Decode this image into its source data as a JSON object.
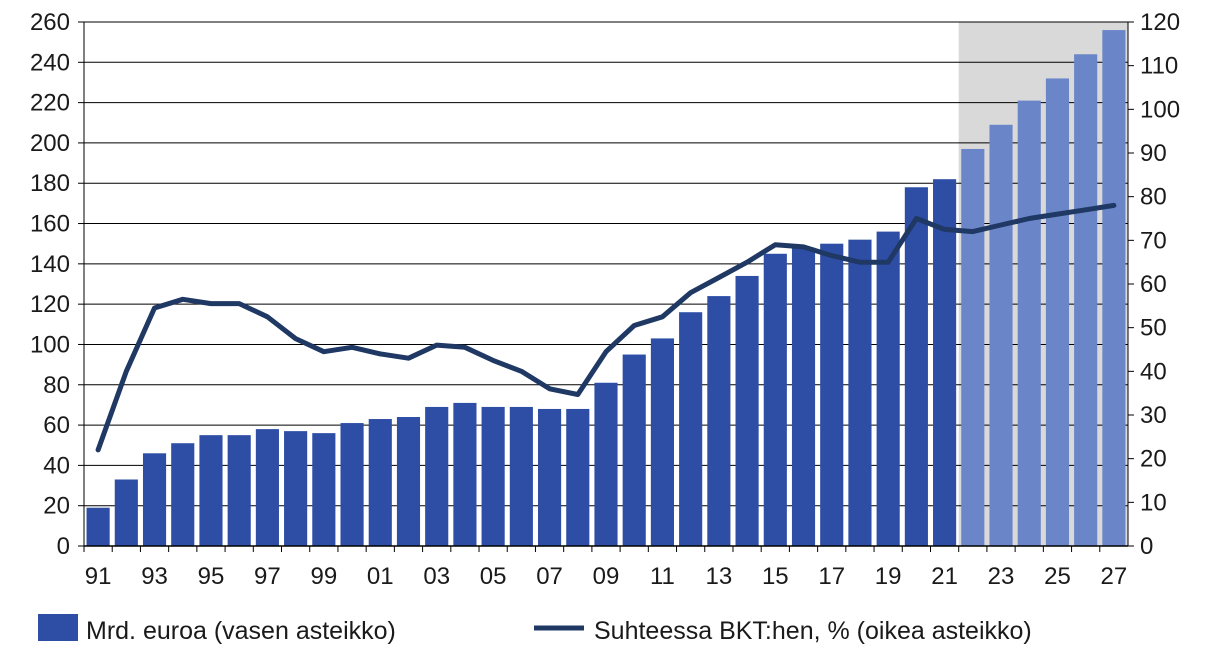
{
  "chart_data": {
    "type": "bar+line",
    "categories": [
      "91",
      "92",
      "93",
      "94",
      "95",
      "96",
      "97",
      "98",
      "99",
      "00",
      "01",
      "02",
      "03",
      "04",
      "05",
      "06",
      "07",
      "08",
      "09",
      "10",
      "11",
      "12",
      "13",
      "14",
      "15",
      "16",
      "17",
      "18",
      "19",
      "20",
      "21",
      "22",
      "23",
      "24",
      "25",
      "26",
      "27"
    ],
    "x_tick_labels": [
      "91",
      "93",
      "95",
      "97",
      "99",
      "01",
      "03",
      "05",
      "07",
      "09",
      "11",
      "13",
      "15",
      "17",
      "19",
      "21",
      "23",
      "25",
      "27"
    ],
    "forecast_from": "22",
    "series": [
      {
        "name": "Mrd. euroa (vasen asteikko)",
        "type": "bar",
        "axis": "left",
        "color": "#2e4ea6",
        "forecast_color": "#6b86c8",
        "values": [
          19,
          33,
          46,
          51,
          55,
          55,
          58,
          57,
          56,
          61,
          63,
          64,
          69,
          71,
          69,
          69,
          68,
          68,
          81,
          95,
          103,
          116,
          124,
          134,
          145,
          148,
          150,
          152,
          156,
          178,
          182,
          197,
          209,
          221,
          232,
          244,
          256
        ]
      },
      {
        "name": "Suhteessa BKT:hen, % (oikea asteikko)",
        "type": "line",
        "axis": "right",
        "color": "#1f3864",
        "values": [
          22,
          40,
          54.5,
          56.5,
          55.5,
          55.5,
          52.5,
          47.5,
          44.5,
          45.5,
          44,
          43,
          46,
          45.5,
          42.5,
          40,
          36,
          34.7,
          44.5,
          50.5,
          52.5,
          58,
          61.5,
          65,
          69,
          68.5,
          66.5,
          65,
          65,
          75,
          72.5,
          72,
          73.5,
          75,
          76,
          77,
          78
        ]
      }
    ],
    "y_left": {
      "min": 0,
      "max": 260,
      "step": 20,
      "ticks": [
        "0",
        "20",
        "40",
        "60",
        "80",
        "100",
        "120",
        "140",
        "160",
        "180",
        "200",
        "220",
        "240",
        "260"
      ]
    },
    "y_right": {
      "min": 0,
      "max": 120,
      "step": 10,
      "ticks": [
        "0",
        "10",
        "20",
        "30",
        "40",
        "50",
        "60",
        "70",
        "80",
        "90",
        "100",
        "110",
        "120"
      ]
    },
    "grid": true,
    "legend_position": "bottom",
    "colors": {
      "bar": "#2e4ea6",
      "bar_forecast": "#6b86c8",
      "line": "#1f3864",
      "forecast_bg": "#d9d9d9",
      "grid": "#000000"
    }
  }
}
